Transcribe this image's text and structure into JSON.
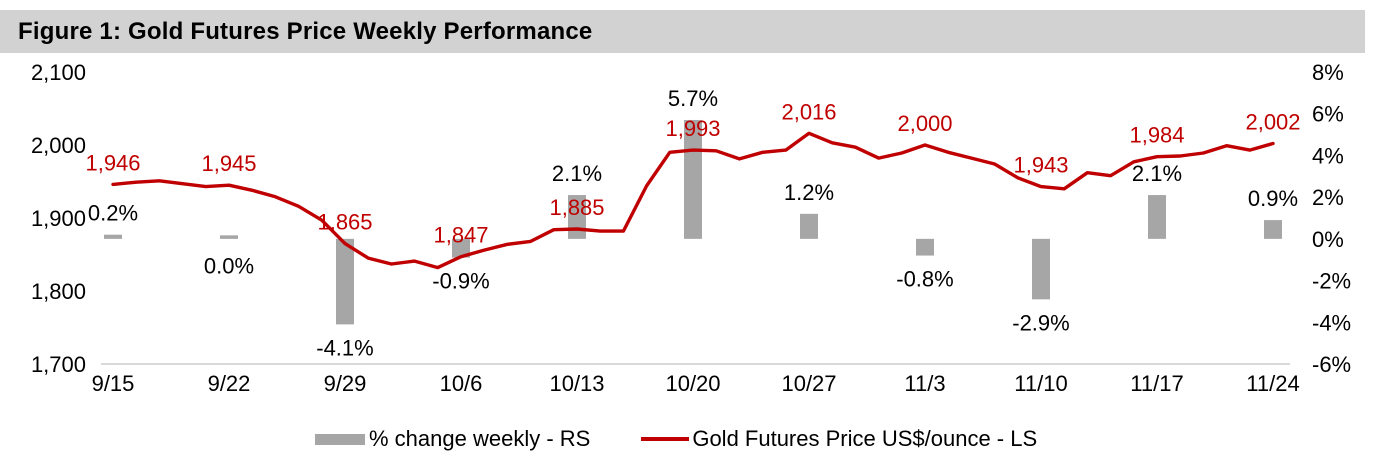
{
  "title_bar": {
    "title": "Figure 1: Gold Futures Price Weekly Performance",
    "background": "#d2d2d2"
  },
  "chart_data": {
    "type": "bar",
    "subtype": "combo-bar-line-dual-axis",
    "title": "Figure 1: Gold Futures Price Weekly Performance",
    "categories": [
      "9/15",
      "9/22",
      "9/29",
      "10/6",
      "10/13",
      "10/20",
      "10/27",
      "11/3",
      "11/10",
      "11/17",
      "11/24"
    ],
    "series": [
      {
        "name": "% change weekly - RS",
        "type": "bar",
        "axis": "right",
        "color": "#a6a6a6",
        "values": [
          0.2,
          0.0,
          -4.1,
          -0.9,
          2.1,
          5.7,
          1.2,
          -0.8,
          -2.9,
          2.1,
          0.9
        ],
        "labels": [
          "0.2%",
          "0.0%",
          "-4.1%",
          "-0.9%",
          "2.1%",
          "5.7%",
          "1.2%",
          "-0.8%",
          "-2.9%",
          "2.1%",
          "0.9%"
        ]
      },
      {
        "name": "Gold Futures Price US$/ounce - LS",
        "type": "line",
        "axis": "left",
        "color": "#c00000",
        "values": [
          1946,
          1945,
          1865,
          1847,
          1885,
          1993,
          2016,
          2000,
          1943,
          1984,
          2002
        ],
        "labels": [
          "1,946",
          "1,945",
          "1,865",
          "1,847",
          "1,885",
          "1,993",
          "2,016",
          "2,000",
          "1,943",
          "1,984",
          "2,002"
        ]
      }
    ],
    "daily_line_prices": [
      1946,
      1949,
      1951,
      1947,
      1943,
      1945,
      1938,
      1929,
      1916,
      1897,
      1865,
      1845,
      1837,
      1841,
      1832,
      1847,
      1856,
      1864,
      1868,
      1884,
      1885,
      1882,
      1882,
      1944,
      1990,
      1993,
      1992,
      1981,
      1990,
      1993,
      2016,
      2003,
      1997,
      1982,
      1989,
      2000,
      1990,
      1982,
      1974,
      1955,
      1943,
      1940,
      1962,
      1958,
      1977,
      1984,
      1985,
      1989,
      1999,
      1993,
      2002
    ],
    "left_axis": {
      "ticks": [
        "2,100",
        "2,000",
        "1,900",
        "1,800",
        "1,700"
      ],
      "max": 2100,
      "min": 1700
    },
    "right_axis": {
      "ticks": [
        "8%",
        "6%",
        "4%",
        "2%",
        "0%",
        "-2%",
        "-4%",
        "-6%"
      ],
      "max": 8,
      "min": -6
    },
    "grid": false,
    "legend_position": "bottom",
    "label_colors": {
      "price_labels": "#c00000",
      "pct_labels": "#000000"
    },
    "axis_line_color": "#d9d9d9"
  }
}
